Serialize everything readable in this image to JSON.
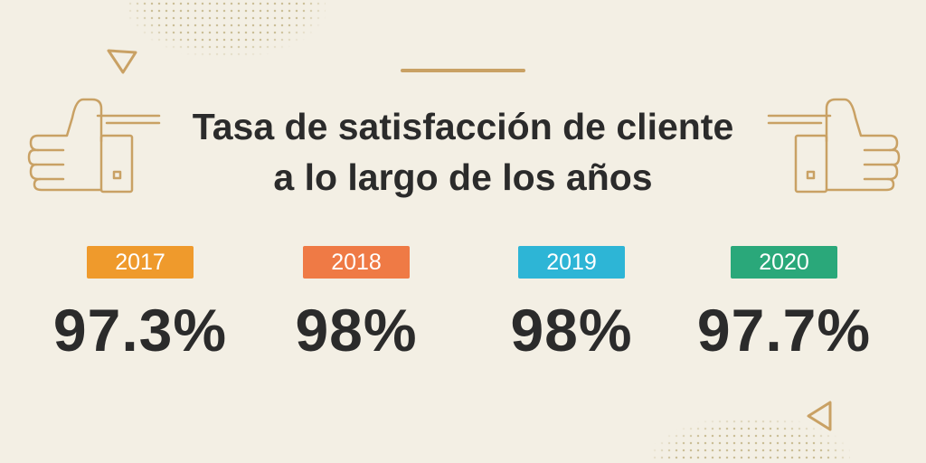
{
  "title": {
    "line1": "Tasa de satisfacción de cliente",
    "line2": "a lo largo de los años"
  },
  "colors": {
    "background": "#f3efe4",
    "accent_gold": "#c9a164",
    "text": "#2b2b2b"
  },
  "stats": [
    {
      "year": "2017",
      "value": "97.3%",
      "color": "#ef9a2c"
    },
    {
      "year": "2018",
      "value": "98%",
      "color": "#ef7a45"
    },
    {
      "year": "2019",
      "value": "98%",
      "color": "#2db5d6"
    },
    {
      "year": "2020",
      "value": "97.7%",
      "color": "#2aa87a"
    }
  ],
  "icons": [
    "thumbs-up-icon",
    "triangle-outline-icon"
  ]
}
